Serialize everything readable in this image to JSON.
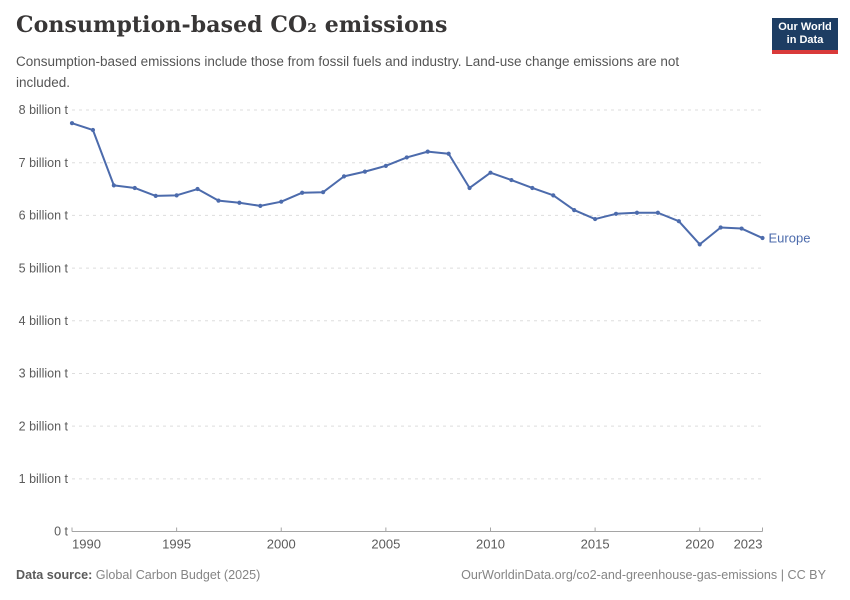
{
  "header": {
    "title": "Consumption-based CO₂ emissions",
    "subtitle": "Consumption-based emissions include those from fossil fuels and industry. Land-use change emissions are not included.",
    "logo": {
      "line1": "Our World",
      "line2": "in Data"
    }
  },
  "footer": {
    "source_label": "Data source:",
    "source_value": " Global Carbon Budget (2025)",
    "origin_url": "OurWorldinData.org/co2-and-greenhouse-gas-emissions | CC BY"
  },
  "colors": {
    "series": "#4c6bac",
    "title_text": "#383636",
    "subtitle_text": "#555555",
    "axis_text": "#5b5b5b",
    "gridline": "#dddddd",
    "axis_line": "#a5a5a5",
    "footer_text": "#858585",
    "logo_bg": "#1d3d63",
    "logo_stripe": "#d93a3a"
  },
  "chart_data": {
    "type": "line",
    "title": "Consumption-based CO₂ emissions",
    "unit": "billion t",
    "grid": "horizontal-dashed",
    "legend": "series label at right end of line",
    "ylim": [
      0,
      8
    ],
    "x": [
      1990,
      1991,
      1992,
      1993,
      1994,
      1995,
      1996,
      1997,
      1998,
      1999,
      2000,
      2001,
      2002,
      2003,
      2004,
      2005,
      2006,
      2007,
      2008,
      2009,
      2010,
      2011,
      2012,
      2013,
      2014,
      2015,
      2016,
      2017,
      2018,
      2019,
      2020,
      2021,
      2022,
      2023
    ],
    "series": [
      {
        "name": "Europe",
        "color": "#4c6bac",
        "values": [
          7.75,
          7.62,
          6.57,
          6.52,
          6.37,
          6.38,
          6.5,
          6.28,
          6.24,
          6.18,
          6.26,
          6.43,
          6.44,
          6.74,
          6.83,
          6.94,
          7.1,
          7.21,
          7.17,
          6.52,
          6.81,
          6.67,
          6.52,
          6.38,
          6.1,
          5.93,
          6.03,
          6.05,
          6.05,
          5.89,
          5.45,
          5.77,
          5.75,
          5.57
        ]
      }
    ],
    "yticks": [
      {
        "value": 0,
        "label": "0 t"
      },
      {
        "value": 1,
        "label": "1 billion t"
      },
      {
        "value": 2,
        "label": "2 billion t"
      },
      {
        "value": 3,
        "label": "3 billion t"
      },
      {
        "value": 4,
        "label": "4 billion t"
      },
      {
        "value": 5,
        "label": "5 billion t"
      },
      {
        "value": 6,
        "label": "6 billion t"
      },
      {
        "value": 7,
        "label": "7 billion t"
      },
      {
        "value": 8,
        "label": "8 billion t"
      }
    ],
    "xticks": [
      {
        "value": 1990,
        "label": "1990",
        "anchor": "start"
      },
      {
        "value": 1995,
        "label": "1995",
        "anchor": "middle"
      },
      {
        "value": 2000,
        "label": "2000",
        "anchor": "middle"
      },
      {
        "value": 2005,
        "label": "2005",
        "anchor": "middle"
      },
      {
        "value": 2010,
        "label": "2010",
        "anchor": "middle"
      },
      {
        "value": 2015,
        "label": "2015",
        "anchor": "middle"
      },
      {
        "value": 2020,
        "label": "2020",
        "anchor": "middle"
      },
      {
        "value": 2023,
        "label": "2023",
        "anchor": "end"
      }
    ]
  }
}
